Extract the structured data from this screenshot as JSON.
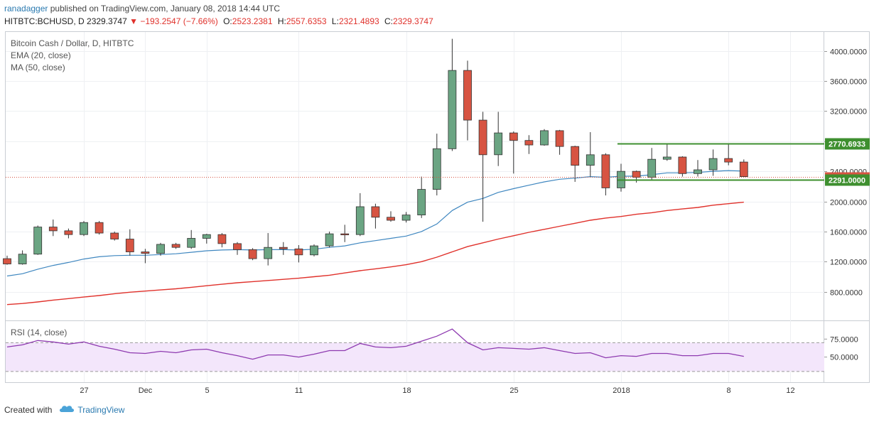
{
  "header": {
    "user": "ranadagger",
    "published": "published on TradingView.com, January 08, 2018 14:44 UTC",
    "symbol": "HITBTC:BCHUSD, D",
    "close_value": "2329.3747",
    "direction_marker": "▼",
    "change": "−193.2547 (−7.66%)",
    "o_label": "O:",
    "o_value": "2523.2381",
    "h_label": "H:",
    "h_value": "2557.6353",
    "l_label": "L:",
    "l_value": "2321.4893",
    "c_label": "C:",
    "c_value": "2329.3747"
  },
  "legend": {
    "title": "Bitcoin Cash / Dollar, D, HITBTC",
    "ema": "EMA (20, close)",
    "ma": "MA (50, close)",
    "rsi": "RSI (14, close)"
  },
  "footer": {
    "created_with": "Created with",
    "brand": "TradingView"
  },
  "colors": {
    "up": "#6ba583",
    "down": "#d75442",
    "ema": "#3f87c0",
    "ma": "#e0312b",
    "level": "#3e8f2f",
    "rsi": "#8e3ab0",
    "rsi_band": "#f3e6fb"
  },
  "chart_data": {
    "type": "candlestick",
    "price_axis": {
      "ticks": [
        800,
        1200,
        1600,
        2000,
        2400,
        2800,
        3200,
        3600,
        4000
      ],
      "tick_labels": [
        "800.0000",
        "1200.0000",
        "1600.0000",
        "2000.0000",
        "2400.0000",
        "2800.0000",
        "3200.0000",
        "3600.0000",
        "4000.0000"
      ],
      "ylim": [
        420,
        4260
      ]
    },
    "time_axis": {
      "tick_labels": [
        "27",
        "Dec",
        "5",
        "11",
        "18",
        "25",
        "2018",
        "8",
        "12"
      ],
      "tick_index": [
        5,
        9,
        13,
        19,
        26,
        33,
        40,
        47,
        51
      ]
    },
    "candles": [
      {
        "o": 1240,
        "h": 1280,
        "l": 1160,
        "c": 1170
      },
      {
        "o": 1170,
        "h": 1350,
        "l": 1160,
        "c": 1300
      },
      {
        "o": 1300,
        "h": 1680,
        "l": 1290,
        "c": 1660
      },
      {
        "o": 1660,
        "h": 1760,
        "l": 1540,
        "c": 1610
      },
      {
        "o": 1610,
        "h": 1640,
        "l": 1510,
        "c": 1560
      },
      {
        "o": 1560,
        "h": 1740,
        "l": 1540,
        "c": 1720
      },
      {
        "o": 1720,
        "h": 1740,
        "l": 1560,
        "c": 1580
      },
      {
        "o": 1580,
        "h": 1600,
        "l": 1480,
        "c": 1500
      },
      {
        "o": 1500,
        "h": 1630,
        "l": 1280,
        "c": 1330
      },
      {
        "o": 1330,
        "h": 1370,
        "l": 1180,
        "c": 1310
      },
      {
        "o": 1310,
        "h": 1450,
        "l": 1280,
        "c": 1430
      },
      {
        "o": 1430,
        "h": 1450,
        "l": 1370,
        "c": 1390
      },
      {
        "o": 1390,
        "h": 1620,
        "l": 1370,
        "c": 1510
      },
      {
        "o": 1510,
        "h": 1570,
        "l": 1440,
        "c": 1560
      },
      {
        "o": 1560,
        "h": 1580,
        "l": 1390,
        "c": 1440
      },
      {
        "o": 1440,
        "h": 1460,
        "l": 1290,
        "c": 1360
      },
      {
        "o": 1360,
        "h": 1380,
        "l": 1220,
        "c": 1240
      },
      {
        "o": 1240,
        "h": 1580,
        "l": 1150,
        "c": 1390
      },
      {
        "o": 1390,
        "h": 1460,
        "l": 1290,
        "c": 1370
      },
      {
        "o": 1370,
        "h": 1420,
        "l": 1190,
        "c": 1290
      },
      {
        "o": 1290,
        "h": 1430,
        "l": 1270,
        "c": 1410
      },
      {
        "o": 1410,
        "h": 1600,
        "l": 1390,
        "c": 1570
      },
      {
        "o": 1570,
        "h": 1690,
        "l": 1460,
        "c": 1560
      },
      {
        "o": 1560,
        "h": 2110,
        "l": 1540,
        "c": 1930
      },
      {
        "o": 1930,
        "h": 1970,
        "l": 1640,
        "c": 1790
      },
      {
        "o": 1790,
        "h": 1870,
        "l": 1730,
        "c": 1750
      },
      {
        "o": 1750,
        "h": 1860,
        "l": 1720,
        "c": 1820
      },
      {
        "o": 1820,
        "h": 2330,
        "l": 1780,
        "c": 2160
      },
      {
        "o": 2160,
        "h": 2900,
        "l": 2080,
        "c": 2700
      },
      {
        "o": 2700,
        "h": 4160,
        "l": 2670,
        "c": 3740
      },
      {
        "o": 3740,
        "h": 3870,
        "l": 2810,
        "c": 3080
      },
      {
        "o": 3080,
        "h": 3190,
        "l": 1730,
        "c": 2620
      },
      {
        "o": 2620,
        "h": 3190,
        "l": 2470,
        "c": 2910
      },
      {
        "o": 2910,
        "h": 2930,
        "l": 2370,
        "c": 2810
      },
      {
        "o": 2810,
        "h": 2880,
        "l": 2630,
        "c": 2750
      },
      {
        "o": 2750,
        "h": 2960,
        "l": 2740,
        "c": 2940
      },
      {
        "o": 2940,
        "h": 2950,
        "l": 2620,
        "c": 2730
      },
      {
        "o": 2730,
        "h": 2740,
        "l": 2260,
        "c": 2480
      },
      {
        "o": 2480,
        "h": 2920,
        "l": 2330,
        "c": 2620
      },
      {
        "o": 2620,
        "h": 2640,
        "l": 2080,
        "c": 2180
      },
      {
        "o": 2180,
        "h": 2500,
        "l": 2130,
        "c": 2400
      },
      {
        "o": 2400,
        "h": 2410,
        "l": 2250,
        "c": 2320
      },
      {
        "o": 2320,
        "h": 2710,
        "l": 2290,
        "c": 2560
      },
      {
        "o": 2560,
        "h": 2770,
        "l": 2540,
        "c": 2590
      },
      {
        "o": 2590,
        "h": 2600,
        "l": 2330,
        "c": 2370
      },
      {
        "o": 2370,
        "h": 2550,
        "l": 2330,
        "c": 2420
      },
      {
        "o": 2420,
        "h": 2690,
        "l": 2340,
        "c": 2570
      },
      {
        "o": 2570,
        "h": 2771,
        "l": 2480,
        "c": 2523
      },
      {
        "o": 2523.2381,
        "h": 2557.6353,
        "l": 2321.4893,
        "c": 2329.3747
      }
    ],
    "ema": [
      1010,
      1040,
      1100,
      1150,
      1190,
      1235,
      1265,
      1280,
      1285,
      1285,
      1295,
      1305,
      1325,
      1345,
      1355,
      1360,
      1355,
      1360,
      1360,
      1355,
      1365,
      1390,
      1410,
      1450,
      1480,
      1510,
      1540,
      1600,
      1700,
      1880,
      1990,
      2040,
      2120,
      2170,
      2215,
      2260,
      2295,
      2310,
      2330,
      2320,
      2335,
      2335,
      2355,
      2380,
      2380,
      2385,
      2400,
      2410,
      2403
    ],
    "ma": [
      630,
      645,
      665,
      690,
      710,
      730,
      750,
      775,
      795,
      810,
      825,
      840,
      860,
      880,
      900,
      920,
      935,
      950,
      965,
      980,
      1000,
      1020,
      1050,
      1080,
      1105,
      1130,
      1160,
      1200,
      1260,
      1330,
      1400,
      1450,
      1500,
      1545,
      1590,
      1630,
      1670,
      1710,
      1750,
      1780,
      1800,
      1830,
      1850,
      1880,
      1900,
      1920,
      1950,
      1970,
      1990
    ],
    "levels": [
      {
        "value": 2770.6933,
        "label": "2770.6933"
      },
      {
        "value": 2291.0,
        "label": "2291.0000"
      }
    ],
    "last_price": {
      "value": 2329.3747,
      "label": "2329.3747"
    },
    "rsi": {
      "ticks": [
        50,
        75
      ],
      "tick_labels": [
        "50.0000",
        "75.0000"
      ],
      "band": [
        30,
        70
      ],
      "ylim": [
        15,
        100
      ],
      "values": [
        64,
        67,
        73,
        71,
        68,
        71,
        65,
        61,
        56,
        55,
        58,
        56,
        60,
        61,
        56,
        52,
        47,
        53,
        53,
        50,
        54,
        59,
        59,
        69,
        64,
        63,
        65,
        72,
        79,
        89,
        70,
        60,
        63,
        62,
        61,
        63,
        59,
        55,
        56,
        49,
        52,
        51,
        55,
        55,
        52,
        52,
        55,
        55,
        51
      ]
    }
  }
}
